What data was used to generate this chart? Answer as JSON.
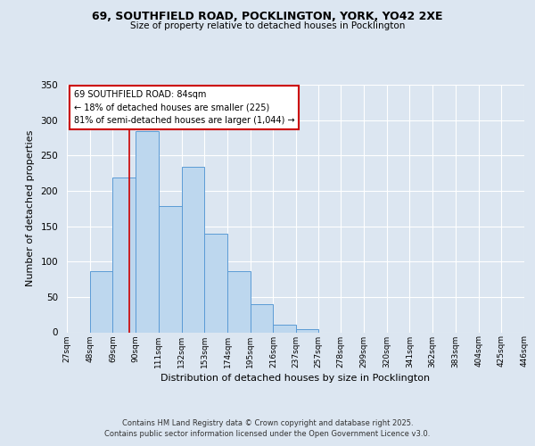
{
  "title": "69, SOUTHFIELD ROAD, POCKLINGTON, YORK, YO42 2XE",
  "subtitle": "Size of property relative to detached houses in Pocklington",
  "xlabel": "Distribution of detached houses by size in Pocklington",
  "ylabel": "Number of detached properties",
  "bar_values": [
    0,
    86,
    219,
    285,
    178,
    234,
    139,
    86,
    40,
    11,
    4,
    0,
    0,
    0,
    0,
    0,
    0,
    0,
    0,
    0
  ],
  "bin_labels": [
    "27sqm",
    "48sqm",
    "69sqm",
    "90sqm",
    "111sqm",
    "132sqm",
    "153sqm",
    "174sqm",
    "195sqm",
    "216sqm",
    "237sqm",
    "257sqm",
    "278sqm",
    "299sqm",
    "320sqm",
    "341sqm",
    "362sqm",
    "383sqm",
    "404sqm",
    "425sqm",
    "446sqm"
  ],
  "bin_edges": [
    27,
    48,
    69,
    90,
    111,
    132,
    153,
    174,
    195,
    216,
    237,
    257,
    278,
    299,
    320,
    341,
    362,
    383,
    404,
    425,
    446
  ],
  "bar_color": "#bdd7ee",
  "bar_edge_color": "#5b9bd5",
  "vline_x": 84,
  "vline_color": "#cc0000",
  "ylim": [
    0,
    350
  ],
  "yticks": [
    0,
    50,
    100,
    150,
    200,
    250,
    300,
    350
  ],
  "annotation_title": "69 SOUTHFIELD ROAD: 84sqm",
  "annotation_line1": "← 18% of detached houses are smaller (225)",
  "annotation_line2": "81% of semi-detached houses are larger (1,044) →",
  "annotation_box_color": "#ffffff",
  "annotation_box_edge": "#cc0000",
  "footer1": "Contains HM Land Registry data © Crown copyright and database right 2025.",
  "footer2": "Contains public sector information licensed under the Open Government Licence v3.0.",
  "background_color": "#dce6f1",
  "plot_background": "#dce6f1"
}
